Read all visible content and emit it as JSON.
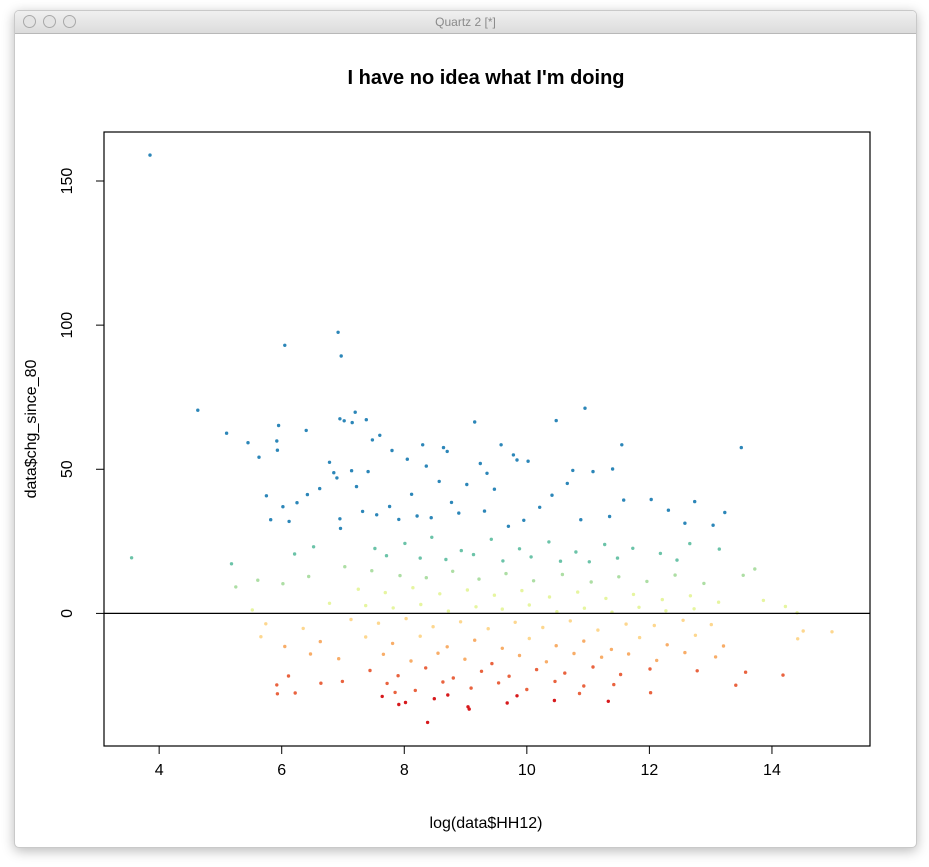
{
  "window": {
    "title": "Quartz 2 [*]"
  },
  "chart_data": {
    "type": "scatter",
    "title": "I have no idea what I'm doing",
    "xlabel": "log(data$HH12)",
    "ylabel": "data$chg_since_80",
    "xlim": [
      3.1,
      15.6
    ],
    "ylim": [
      -46,
      167
    ],
    "xticks": [
      4,
      6,
      8,
      10,
      12,
      14
    ],
    "yticks": [
      0,
      50,
      100,
      150
    ],
    "hline": 0,
    "colors": [
      "#d7191c",
      "#e9633f",
      "#f8ad68",
      "#fdd78f",
      "#e6f5a0",
      "#addea4",
      "#6bc3a8",
      "#2c86b8"
    ],
    "color_breaks": [
      -28,
      -17,
      -9,
      0,
      9,
      17,
      28
    ],
    "points": [
      [
        3.85,
        159
      ],
      [
        6.92,
        97.5
      ],
      [
        6.05,
        93
      ],
      [
        6.97,
        89.3
      ],
      [
        4.63,
        70.5
      ],
      [
        10.95,
        71.2
      ],
      [
        7.2,
        69.8
      ],
      [
        6.95,
        67.5
      ],
      [
        10.48,
        66.9
      ],
      [
        7.38,
        67.2
      ],
      [
        7.02,
        66.8
      ],
      [
        7.15,
        66.2
      ],
      [
        9.15,
        66.4
      ],
      [
        5.95,
        65.2
      ],
      [
        6.4,
        63.5
      ],
      [
        5.1,
        62.5
      ],
      [
        7.6,
        61.8
      ],
      [
        7.48,
        60.2
      ],
      [
        5.92,
        59.8
      ],
      [
        5.45,
        59.2
      ],
      [
        11.55,
        58.5
      ],
      [
        8.3,
        58.5
      ],
      [
        9.58,
        58.5
      ],
      [
        8.64,
        57.5
      ],
      [
        13.5,
        57.5
      ],
      [
        7.8,
        56.5
      ],
      [
        9.78,
        55.0
      ],
      [
        5.93,
        56.6
      ],
      [
        5.63,
        54.2
      ],
      [
        9.84,
        53.2
      ],
      [
        10.02,
        52.8
      ],
      [
        8.7,
        56.2
      ],
      [
        8.05,
        53.5
      ],
      [
        6.78,
        52.4
      ],
      [
        9.24,
        52.0
      ],
      [
        8.36,
        51.1
      ],
      [
        11.4,
        50.1
      ],
      [
        7.41,
        49.2
      ],
      [
        10.75,
        49.6
      ],
      [
        7.14,
        49.5
      ],
      [
        6.85,
        48.8
      ],
      [
        11.08,
        49.2
      ],
      [
        9.35,
        48.6
      ],
      [
        6.9,
        47.0
      ],
      [
        8.57,
        45.8
      ],
      [
        10.66,
        45.1
      ],
      [
        9.02,
        44.7
      ],
      [
        7.22,
        44.0
      ],
      [
        6.62,
        43.3
      ],
      [
        9.47,
        43.1
      ],
      [
        6.42,
        41.2
      ],
      [
        10.41,
        41.0
      ],
      [
        5.75,
        40.8
      ],
      [
        12.03,
        39.5
      ],
      [
        11.58,
        39.3
      ],
      [
        6.25,
        38.4
      ],
      [
        6.02,
        37.0
      ],
      [
        12.74,
        38.8
      ],
      [
        8.89,
        34.8
      ],
      [
        12.31,
        35.8
      ],
      [
        7.55,
        34.2
      ],
      [
        13.23,
        35.0
      ],
      [
        5.82,
        32.5
      ],
      [
        8.21,
        33.8
      ],
      [
        6.12,
        31.9
      ],
      [
        7.91,
        32.6
      ],
      [
        12.58,
        31.3
      ],
      [
        9.7,
        30.2
      ],
      [
        13.04,
        30.6
      ],
      [
        10.88,
        32.5
      ],
      [
        8.44,
        33.2
      ],
      [
        6.95,
        32.8
      ],
      [
        9.31,
        35.5
      ],
      [
        7.76,
        37.1
      ],
      [
        10.21,
        36.8
      ],
      [
        8.77,
        38.5
      ],
      [
        9.95,
        32.3
      ],
      [
        11.35,
        33.6
      ],
      [
        7.32,
        35.4
      ],
      [
        8.12,
        41.3
      ],
      [
        6.96,
        29.5
      ],
      [
        7.52,
        22.5
      ],
      [
        8.01,
        24.3
      ],
      [
        8.45,
        26.4
      ],
      [
        8.93,
        21.8
      ],
      [
        9.42,
        25.7
      ],
      [
        9.88,
        22.4
      ],
      [
        10.36,
        24.8
      ],
      [
        10.8,
        21.3
      ],
      [
        11.27,
        23.9
      ],
      [
        11.73,
        22.6
      ],
      [
        12.18,
        20.8
      ],
      [
        12.66,
        24.2
      ],
      [
        13.14,
        22.3
      ],
      [
        6.52,
        23.1
      ],
      [
        6.21,
        20.6
      ],
      [
        7.71,
        20.0
      ],
      [
        8.26,
        19.2
      ],
      [
        8.68,
        18.7
      ],
      [
        9.13,
        20.4
      ],
      [
        9.61,
        18.2
      ],
      [
        10.07,
        19.6
      ],
      [
        10.55,
        18.1
      ],
      [
        11.02,
        17.9
      ],
      [
        11.48,
        19.2
      ],
      [
        12.45,
        18.5
      ],
      [
        5.18,
        17.2
      ],
      [
        3.55,
        19.3
      ],
      [
        13.72,
        15.4
      ],
      [
        13.53,
        13.2
      ],
      [
        7.03,
        16.2
      ],
      [
        7.47,
        14.8
      ],
      [
        7.93,
        13.1
      ],
      [
        8.36,
        12.4
      ],
      [
        8.79,
        14.6
      ],
      [
        9.22,
        11.9
      ],
      [
        9.66,
        13.8
      ],
      [
        10.11,
        11.3
      ],
      [
        10.58,
        13.5
      ],
      [
        11.05,
        10.9
      ],
      [
        11.5,
        12.7
      ],
      [
        11.96,
        11.1
      ],
      [
        12.42,
        13.3
      ],
      [
        12.89,
        10.4
      ],
      [
        6.44,
        12.8
      ],
      [
        6.02,
        10.3
      ],
      [
        5.61,
        11.5
      ],
      [
        5.25,
        9.2
      ],
      [
        7.25,
        8.4
      ],
      [
        7.69,
        7.2
      ],
      [
        8.14,
        8.9
      ],
      [
        8.58,
        6.8
      ],
      [
        9.03,
        8.1
      ],
      [
        9.47,
        6.3
      ],
      [
        9.92,
        7.9
      ],
      [
        10.37,
        5.7
      ],
      [
        10.83,
        7.4
      ],
      [
        11.29,
        5.2
      ],
      [
        11.74,
        6.6
      ],
      [
        12.21,
        4.8
      ],
      [
        12.67,
        6.1
      ],
      [
        13.13,
        3.9
      ],
      [
        13.86,
        4.5
      ],
      [
        14.22,
        2.4
      ],
      [
        5.52,
        1.2
      ],
      [
        6.78,
        3.5
      ],
      [
        7.37,
        2.7
      ],
      [
        7.82,
        1.9
      ],
      [
        8.27,
        3.1
      ],
      [
        8.72,
        0.8
      ],
      [
        9.17,
        2.3
      ],
      [
        9.6,
        1.5
      ],
      [
        10.04,
        2.9
      ],
      [
        10.49,
        0.6
      ],
      [
        10.94,
        1.8
      ],
      [
        11.39,
        0.4
      ],
      [
        11.83,
        2.1
      ],
      [
        12.27,
        0.9
      ],
      [
        12.73,
        1.6
      ],
      [
        14.41,
        0.2
      ],
      [
        7.13,
        -2.1
      ],
      [
        7.58,
        -3.4
      ],
      [
        8.03,
        -1.8
      ],
      [
        8.47,
        -4.6
      ],
      [
        8.92,
        -2.9
      ],
      [
        9.37,
        -5.3
      ],
      [
        9.81,
        -3.1
      ],
      [
        10.26,
        -4.9
      ],
      [
        10.71,
        -2.6
      ],
      [
        11.16,
        -5.8
      ],
      [
        11.62,
        -3.7
      ],
      [
        12.08,
        -4.2
      ],
      [
        12.55,
        -2.4
      ],
      [
        13.01,
        -3.9
      ],
      [
        6.35,
        -5.2
      ],
      [
        5.74,
        -3.6
      ],
      [
        14.51,
        -6.1
      ],
      [
        14.98,
        -6.4
      ],
      [
        7.37,
        -8.2
      ],
      [
        7.81,
        -10.4
      ],
      [
        8.26,
        -7.9
      ],
      [
        8.7,
        -11.6
      ],
      [
        9.15,
        -9.3
      ],
      [
        9.6,
        -12.1
      ],
      [
        10.04,
        -8.7
      ],
      [
        10.48,
        -11.2
      ],
      [
        10.93,
        -9.6
      ],
      [
        11.38,
        -12.5
      ],
      [
        11.84,
        -8.4
      ],
      [
        12.29,
        -10.9
      ],
      [
        12.75,
        -7.6
      ],
      [
        13.21,
        -11.3
      ],
      [
        6.63,
        -9.8
      ],
      [
        6.05,
        -11.5
      ],
      [
        5.66,
        -8.1
      ],
      [
        14.42,
        -8.8
      ],
      [
        7.66,
        -14.2
      ],
      [
        8.11,
        -16.5
      ],
      [
        8.55,
        -13.8
      ],
      [
        8.99,
        -15.9
      ],
      [
        9.43,
        -17.4
      ],
      [
        9.88,
        -14.6
      ],
      [
        10.32,
        -16.8
      ],
      [
        10.77,
        -13.9
      ],
      [
        11.22,
        -15.2
      ],
      [
        11.66,
        -14.1
      ],
      [
        12.12,
        -16.3
      ],
      [
        12.58,
        -13.6
      ],
      [
        6.93,
        -15.7
      ],
      [
        6.47,
        -14.1
      ],
      [
        13.08,
        -15.1
      ],
      [
        7.44,
        -19.8
      ],
      [
        7.9,
        -21.6
      ],
      [
        8.35,
        -18.9
      ],
      [
        8.8,
        -22.4
      ],
      [
        9.26,
        -20.1
      ],
      [
        9.71,
        -21.8
      ],
      [
        10.16,
        -19.5
      ],
      [
        10.62,
        -20.7
      ],
      [
        11.08,
        -18.6
      ],
      [
        11.53,
        -21.2
      ],
      [
        12.01,
        -19.3
      ],
      [
        12.78,
        -19.9
      ],
      [
        13.57,
        -20.4
      ],
      [
        14.18,
        -21.4
      ],
      [
        6.11,
        -21.7
      ],
      [
        5.92,
        -24.8
      ],
      [
        7.72,
        -24.3
      ],
      [
        8.18,
        -26.7
      ],
      [
        8.63,
        -23.8
      ],
      [
        9.09,
        -25.9
      ],
      [
        9.54,
        -24.1
      ],
      [
        10.0,
        -26.4
      ],
      [
        10.46,
        -23.6
      ],
      [
        10.93,
        -25.2
      ],
      [
        11.42,
        -24.7
      ],
      [
        12.02,
        -27.5
      ],
      [
        13.41,
        -24.9
      ],
      [
        6.22,
        -27.6
      ],
      [
        5.93,
        -27.9
      ],
      [
        6.64,
        -24.2
      ],
      [
        6.99,
        -23.6
      ],
      [
        7.64,
        -28.8
      ],
      [
        8.02,
        -30.9
      ],
      [
        8.49,
        -29.6
      ],
      [
        9.04,
        -32.4
      ],
      [
        9.68,
        -31.1
      ],
      [
        10.45,
        -30.2
      ],
      [
        11.33,
        -30.5
      ],
      [
        7.91,
        -31.6
      ],
      [
        9.06,
        -33.2
      ],
      [
        8.38,
        -37.8
      ],
      [
        7.85,
        -27.4
      ],
      [
        8.71,
        -28.3
      ],
      [
        9.84,
        -28.6
      ],
      [
        10.86,
        -27.8
      ]
    ]
  }
}
